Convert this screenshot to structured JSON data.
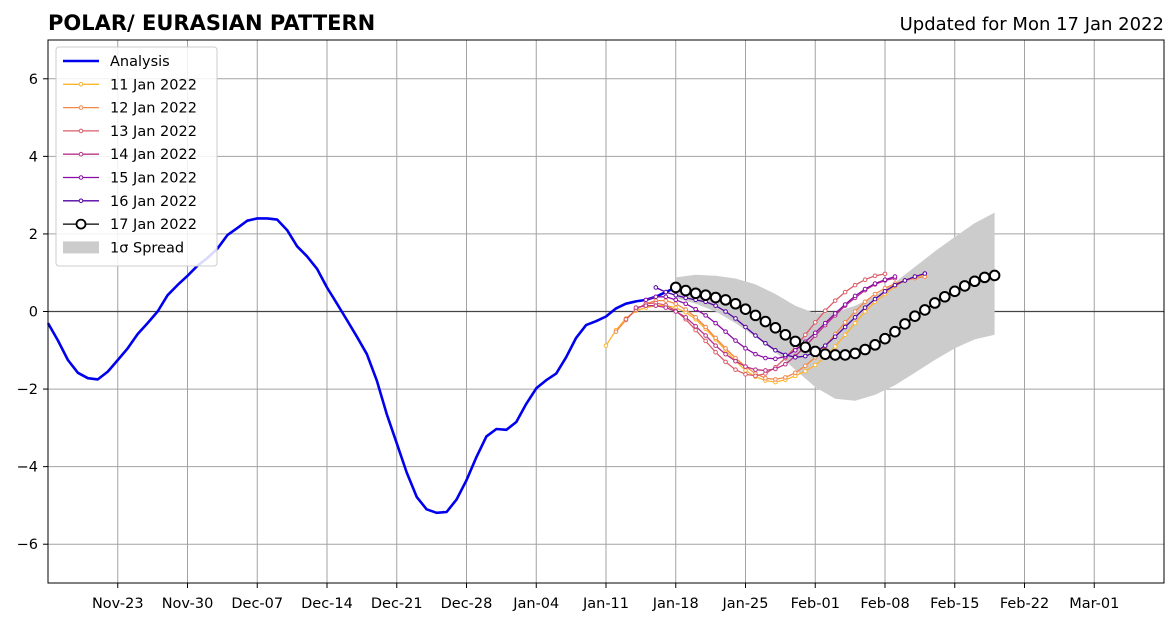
{
  "chart_data": {
    "type": "line",
    "title": "POLAR/ EURASIAN  PATTERN",
    "subtitle": "Updated for Mon 17 Jan 2022",
    "xlabel": "",
    "ylabel": "",
    "x_start": "2021-11-16",
    "xlim": [
      0,
      112
    ],
    "ylim": [
      -7,
      7
    ],
    "grid": true,
    "legend_position": "top-left",
    "x_ticks": [
      {
        "day": 7,
        "label": "Nov-23"
      },
      {
        "day": 14,
        "label": "Nov-30"
      },
      {
        "day": 21,
        "label": "Dec-07"
      },
      {
        "day": 28,
        "label": "Dec-14"
      },
      {
        "day": 35,
        "label": "Dec-21"
      },
      {
        "day": 42,
        "label": "Dec-28"
      },
      {
        "day": 49,
        "label": "Jan-04"
      },
      {
        "day": 56,
        "label": "Jan-11"
      },
      {
        "day": 63,
        "label": "Jan-18"
      },
      {
        "day": 70,
        "label": "Jan-25"
      },
      {
        "day": 77,
        "label": "Feb-01"
      },
      {
        "day": 84,
        "label": "Feb-08"
      },
      {
        "day": 91,
        "label": "Feb-15"
      },
      {
        "day": 98,
        "label": "Feb-22"
      },
      {
        "day": 105,
        "label": "Mar-01"
      }
    ],
    "y_ticks": [
      {
        "value": -6,
        "label": "−6"
      },
      {
        "value": -4,
        "label": "−4"
      },
      {
        "value": -2,
        "label": "−2"
      },
      {
        "value": 0,
        "label": "0"
      },
      {
        "value": 2,
        "label": "2"
      },
      {
        "value": 4,
        "label": "4"
      },
      {
        "value": 6,
        "label": "6"
      }
    ],
    "analysis": {
      "name": "Analysis",
      "color": "#0000ee",
      "points": [
        [
          0,
          -0.3
        ],
        [
          1,
          -0.75
        ],
        [
          2,
          -1.25
        ],
        [
          3,
          -1.58
        ],
        [
          4,
          -1.72
        ],
        [
          5,
          -1.75
        ],
        [
          6,
          -1.55
        ],
        [
          7,
          -1.25
        ],
        [
          8,
          -0.95
        ],
        [
          9,
          -0.58
        ],
        [
          10,
          -0.3
        ],
        [
          11,
          0.0
        ],
        [
          12,
          0.42
        ],
        [
          13,
          0.68
        ],
        [
          14,
          0.92
        ],
        [
          15,
          1.18
        ],
        [
          16,
          1.38
        ],
        [
          17,
          1.62
        ],
        [
          18,
          1.97
        ],
        [
          19,
          2.15
        ],
        [
          20,
          2.34
        ],
        [
          21,
          2.4
        ],
        [
          22,
          2.4
        ],
        [
          23,
          2.37
        ],
        [
          24,
          2.1
        ],
        [
          25,
          1.68
        ],
        [
          26,
          1.42
        ],
        [
          27,
          1.1
        ],
        [
          28,
          0.62
        ],
        [
          29,
          0.2
        ],
        [
          30,
          -0.22
        ],
        [
          31,
          -0.65
        ],
        [
          32,
          -1.1
        ],
        [
          33,
          -1.78
        ],
        [
          34,
          -2.65
        ],
        [
          35,
          -3.4
        ],
        [
          36,
          -4.15
        ],
        [
          37,
          -4.78
        ],
        [
          38,
          -5.1
        ],
        [
          39,
          -5.19
        ],
        [
          40,
          -5.17
        ],
        [
          41,
          -4.85
        ],
        [
          42,
          -4.35
        ],
        [
          43,
          -3.75
        ],
        [
          44,
          -3.22
        ],
        [
          45,
          -3.03
        ],
        [
          46,
          -3.05
        ],
        [
          47,
          -2.85
        ],
        [
          48,
          -2.38
        ],
        [
          49,
          -1.98
        ],
        [
          50,
          -1.77
        ],
        [
          51,
          -1.6
        ],
        [
          52,
          -1.18
        ],
        [
          53,
          -0.68
        ],
        [
          54,
          -0.35
        ],
        [
          55,
          -0.25
        ],
        [
          56,
          -0.13
        ],
        [
          57,
          0.08
        ],
        [
          58,
          0.2
        ],
        [
          59,
          0.26
        ],
        [
          60,
          0.3
        ],
        [
          61,
          0.38
        ],
        [
          62,
          0.5
        ],
        [
          63,
          0.62
        ]
      ]
    },
    "forecasts": [
      {
        "name": "11 Jan 2022",
        "color": "#fdb42f",
        "start": 56,
        "values": [
          -0.88,
          -0.48,
          -0.18,
          0.02,
          0.1,
          0.15,
          0.15,
          0.1,
          -0.02,
          -0.2,
          -0.45,
          -0.72,
          -1.0,
          -1.28,
          -1.52,
          -1.68,
          -1.78,
          -1.82,
          -1.76,
          -1.66,
          -1.54,
          -1.38,
          -1.18,
          -0.9,
          -0.6,
          -0.3,
          0.0,
          0.25,
          0.45,
          0.65,
          0.8,
          0.9,
          0.95
        ]
      },
      {
        "name": "12 Jan 2022",
        "color": "#f48849",
        "start": 57,
        "values": [
          -0.52,
          -0.22,
          0.05,
          0.2,
          0.28,
          0.28,
          0.2,
          0.05,
          -0.15,
          -0.4,
          -0.68,
          -0.95,
          -1.2,
          -1.42,
          -1.6,
          -1.72,
          -1.75,
          -1.7,
          -1.58,
          -1.4,
          -1.18,
          -0.9,
          -0.58,
          -0.28,
          0.0,
          0.25,
          0.45,
          0.6,
          0.72,
          0.8,
          0.86,
          0.9
        ]
      },
      {
        "name": "13 Jan 2022",
        "color": "#db5c68",
        "start": 58,
        "values": [
          -0.2,
          0.05,
          0.2,
          0.22,
          0.16,
          0.02,
          -0.2,
          -0.48,
          -0.76,
          -1.05,
          -1.3,
          -1.5,
          -1.62,
          -1.66,
          -1.6,
          -1.44,
          -1.2,
          -0.92,
          -0.6,
          -0.28,
          0.02,
          0.28,
          0.5,
          0.68,
          0.82,
          0.92,
          0.97
        ]
      },
      {
        "name": "14 Jan 2022",
        "color": "#b83289",
        "start": 59,
        "values": [
          0.1,
          0.15,
          0.15,
          0.1,
          0.0,
          -0.15,
          -0.38,
          -0.62,
          -0.88,
          -1.1,
          -1.28,
          -1.42,
          -1.5,
          -1.52,
          -1.48,
          -1.36,
          -1.15,
          -0.9,
          -0.62,
          -0.35,
          -0.1,
          0.15,
          0.35,
          0.55,
          0.7,
          0.8,
          0.86
        ]
      },
      {
        "name": "15 Jan 2022",
        "color": "#8b0aa5",
        "start": 60,
        "values": [
          0.3,
          0.38,
          0.38,
          0.3,
          0.2,
          0.06,
          -0.1,
          -0.3,
          -0.52,
          -0.75,
          -0.95,
          -1.1,
          -1.2,
          -1.22,
          -1.16,
          -1.0,
          -0.78,
          -0.55,
          -0.3,
          -0.05,
          0.18,
          0.4,
          0.58,
          0.72,
          0.82,
          0.9
        ]
      },
      {
        "name": "16 Jan 2022",
        "color": "#5302a3",
        "start": 61,
        "values": [
          0.62,
          0.5,
          0.42,
          0.35,
          0.3,
          0.25,
          0.15,
          0.0,
          -0.18,
          -0.4,
          -0.62,
          -0.82,
          -1.0,
          -1.12,
          -1.18,
          -1.15,
          -1.05,
          -0.88,
          -0.65,
          -0.4,
          -0.15,
          0.1,
          0.32,
          0.52,
          0.68,
          0.8,
          0.9,
          0.98
        ]
      },
      {
        "name": "17 Jan 2022",
        "color": "#000000",
        "start": 63,
        "values": [
          0.62,
          0.54,
          0.47,
          0.42,
          0.36,
          0.3,
          0.2,
          0.06,
          -0.1,
          -0.26,
          -0.42,
          -0.6,
          -0.77,
          -0.92,
          -1.03,
          -1.1,
          -1.12,
          -1.12,
          -1.08,
          -0.98,
          -0.86,
          -0.7,
          -0.52,
          -0.32,
          -0.12,
          0.04,
          0.22,
          0.38,
          0.52,
          0.66,
          0.78,
          0.88,
          0.93
        ]
      }
    ],
    "spread": {
      "name": "1σ Spread",
      "color": "#cccccc",
      "days": [
        63,
        65,
        67,
        69,
        71,
        73,
        75,
        77,
        79,
        81,
        83,
        85,
        87,
        89,
        91,
        93,
        95
      ],
      "upper": [
        0.88,
        0.95,
        0.92,
        0.85,
        0.7,
        0.45,
        0.15,
        -0.05,
        -0.02,
        0.15,
        0.4,
        0.75,
        1.15,
        1.55,
        1.92,
        2.28,
        2.55
      ],
      "lower": [
        0.35,
        0.2,
        0.0,
        -0.3,
        -0.65,
        -1.05,
        -1.5,
        -1.95,
        -2.25,
        -2.3,
        -2.15,
        -1.9,
        -1.58,
        -1.25,
        -0.95,
        -0.72,
        -0.6
      ]
    }
  }
}
